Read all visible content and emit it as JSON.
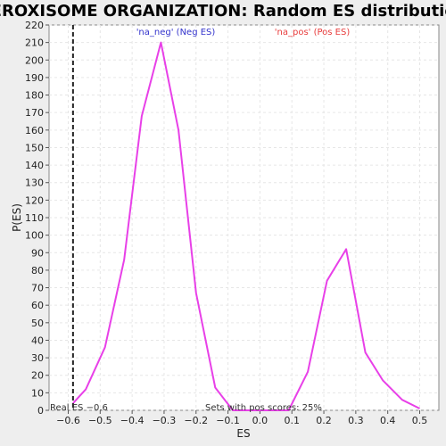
{
  "chart_data": {
    "type": "line",
    "title": "PEROXISOME ORGANIZATION: Random ES distribution",
    "xlabel": "ES",
    "ylabel": "P(ES)",
    "xlim": [
      -0.66,
      0.56
    ],
    "ylim": [
      0,
      220
    ],
    "xticks": [
      -0.6,
      -0.5,
      -0.4,
      -0.3,
      -0.2,
      -0.1,
      0.0,
      0.1,
      0.2,
      0.3,
      0.4,
      0.5
    ],
    "xtick_labels": [
      "−0.6",
      "−0.5",
      "−0.4",
      "−0.3",
      "−0.2",
      "−0.1",
      "0.0",
      "0.1",
      "0.2",
      "0.3",
      "0.4",
      "0.5"
    ],
    "yticks": [
      0,
      10,
      20,
      30,
      40,
      50,
      60,
      70,
      80,
      90,
      100,
      110,
      120,
      130,
      140,
      150,
      160,
      170,
      180,
      190,
      200,
      210,
      220
    ],
    "grid": true,
    "series": [
      {
        "color": "#e840e8",
        "x": [
          -0.585,
          -0.545,
          -0.485,
          -0.425,
          -0.37,
          -0.31,
          -0.255,
          -0.2,
          -0.14,
          -0.085,
          -0.03,
          0.03,
          0.09,
          0.15,
          0.21,
          0.27,
          0.33,
          0.385,
          0.445,
          0.5
        ],
        "y": [
          4,
          12,
          36,
          86,
          168,
          210,
          160,
          67,
          13,
          0,
          0,
          0,
          0,
          22,
          74,
          92,
          33,
          17,
          6,
          1
        ]
      }
    ],
    "real_es": -0.585,
    "legend": [
      {
        "label": "'na_neg' (Neg ES)",
        "color": "#3333cc"
      },
      {
        "label": "'na_pos' (Pos ES)",
        "color": "#e83c3c"
      }
    ],
    "annotations": {
      "real_es": "Real ES −0.6",
      "sets_pos": "Sets with pos scores: 25%"
    }
  }
}
